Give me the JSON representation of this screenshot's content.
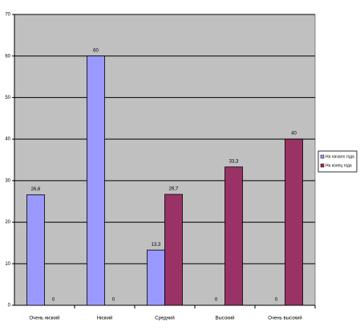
{
  "chart_data": {
    "type": "bar",
    "categories": [
      "Очень низкий",
      "Низкий",
      "Средний",
      "Высокий",
      "Очень высокий"
    ],
    "series": [
      {
        "name": "На начало года",
        "color": "#9999ff",
        "values": [
          26.6,
          60,
          13.3,
          0,
          0
        ],
        "value_labels": [
          "26,6",
          "60",
          "13,3",
          "0",
          "0"
        ]
      },
      {
        "name": "На конец года",
        "color": "#993366",
        "values": [
          0,
          0,
          26.7,
          33.3,
          40
        ],
        "value_labels": [
          "0",
          "0",
          "26,7",
          "33,3",
          "40"
        ]
      }
    ],
    "ylim": [
      0,
      70
    ],
    "yticks": [
      0,
      10,
      20,
      30,
      40,
      50,
      60,
      70
    ],
    "grid": true,
    "legend": "right"
  }
}
